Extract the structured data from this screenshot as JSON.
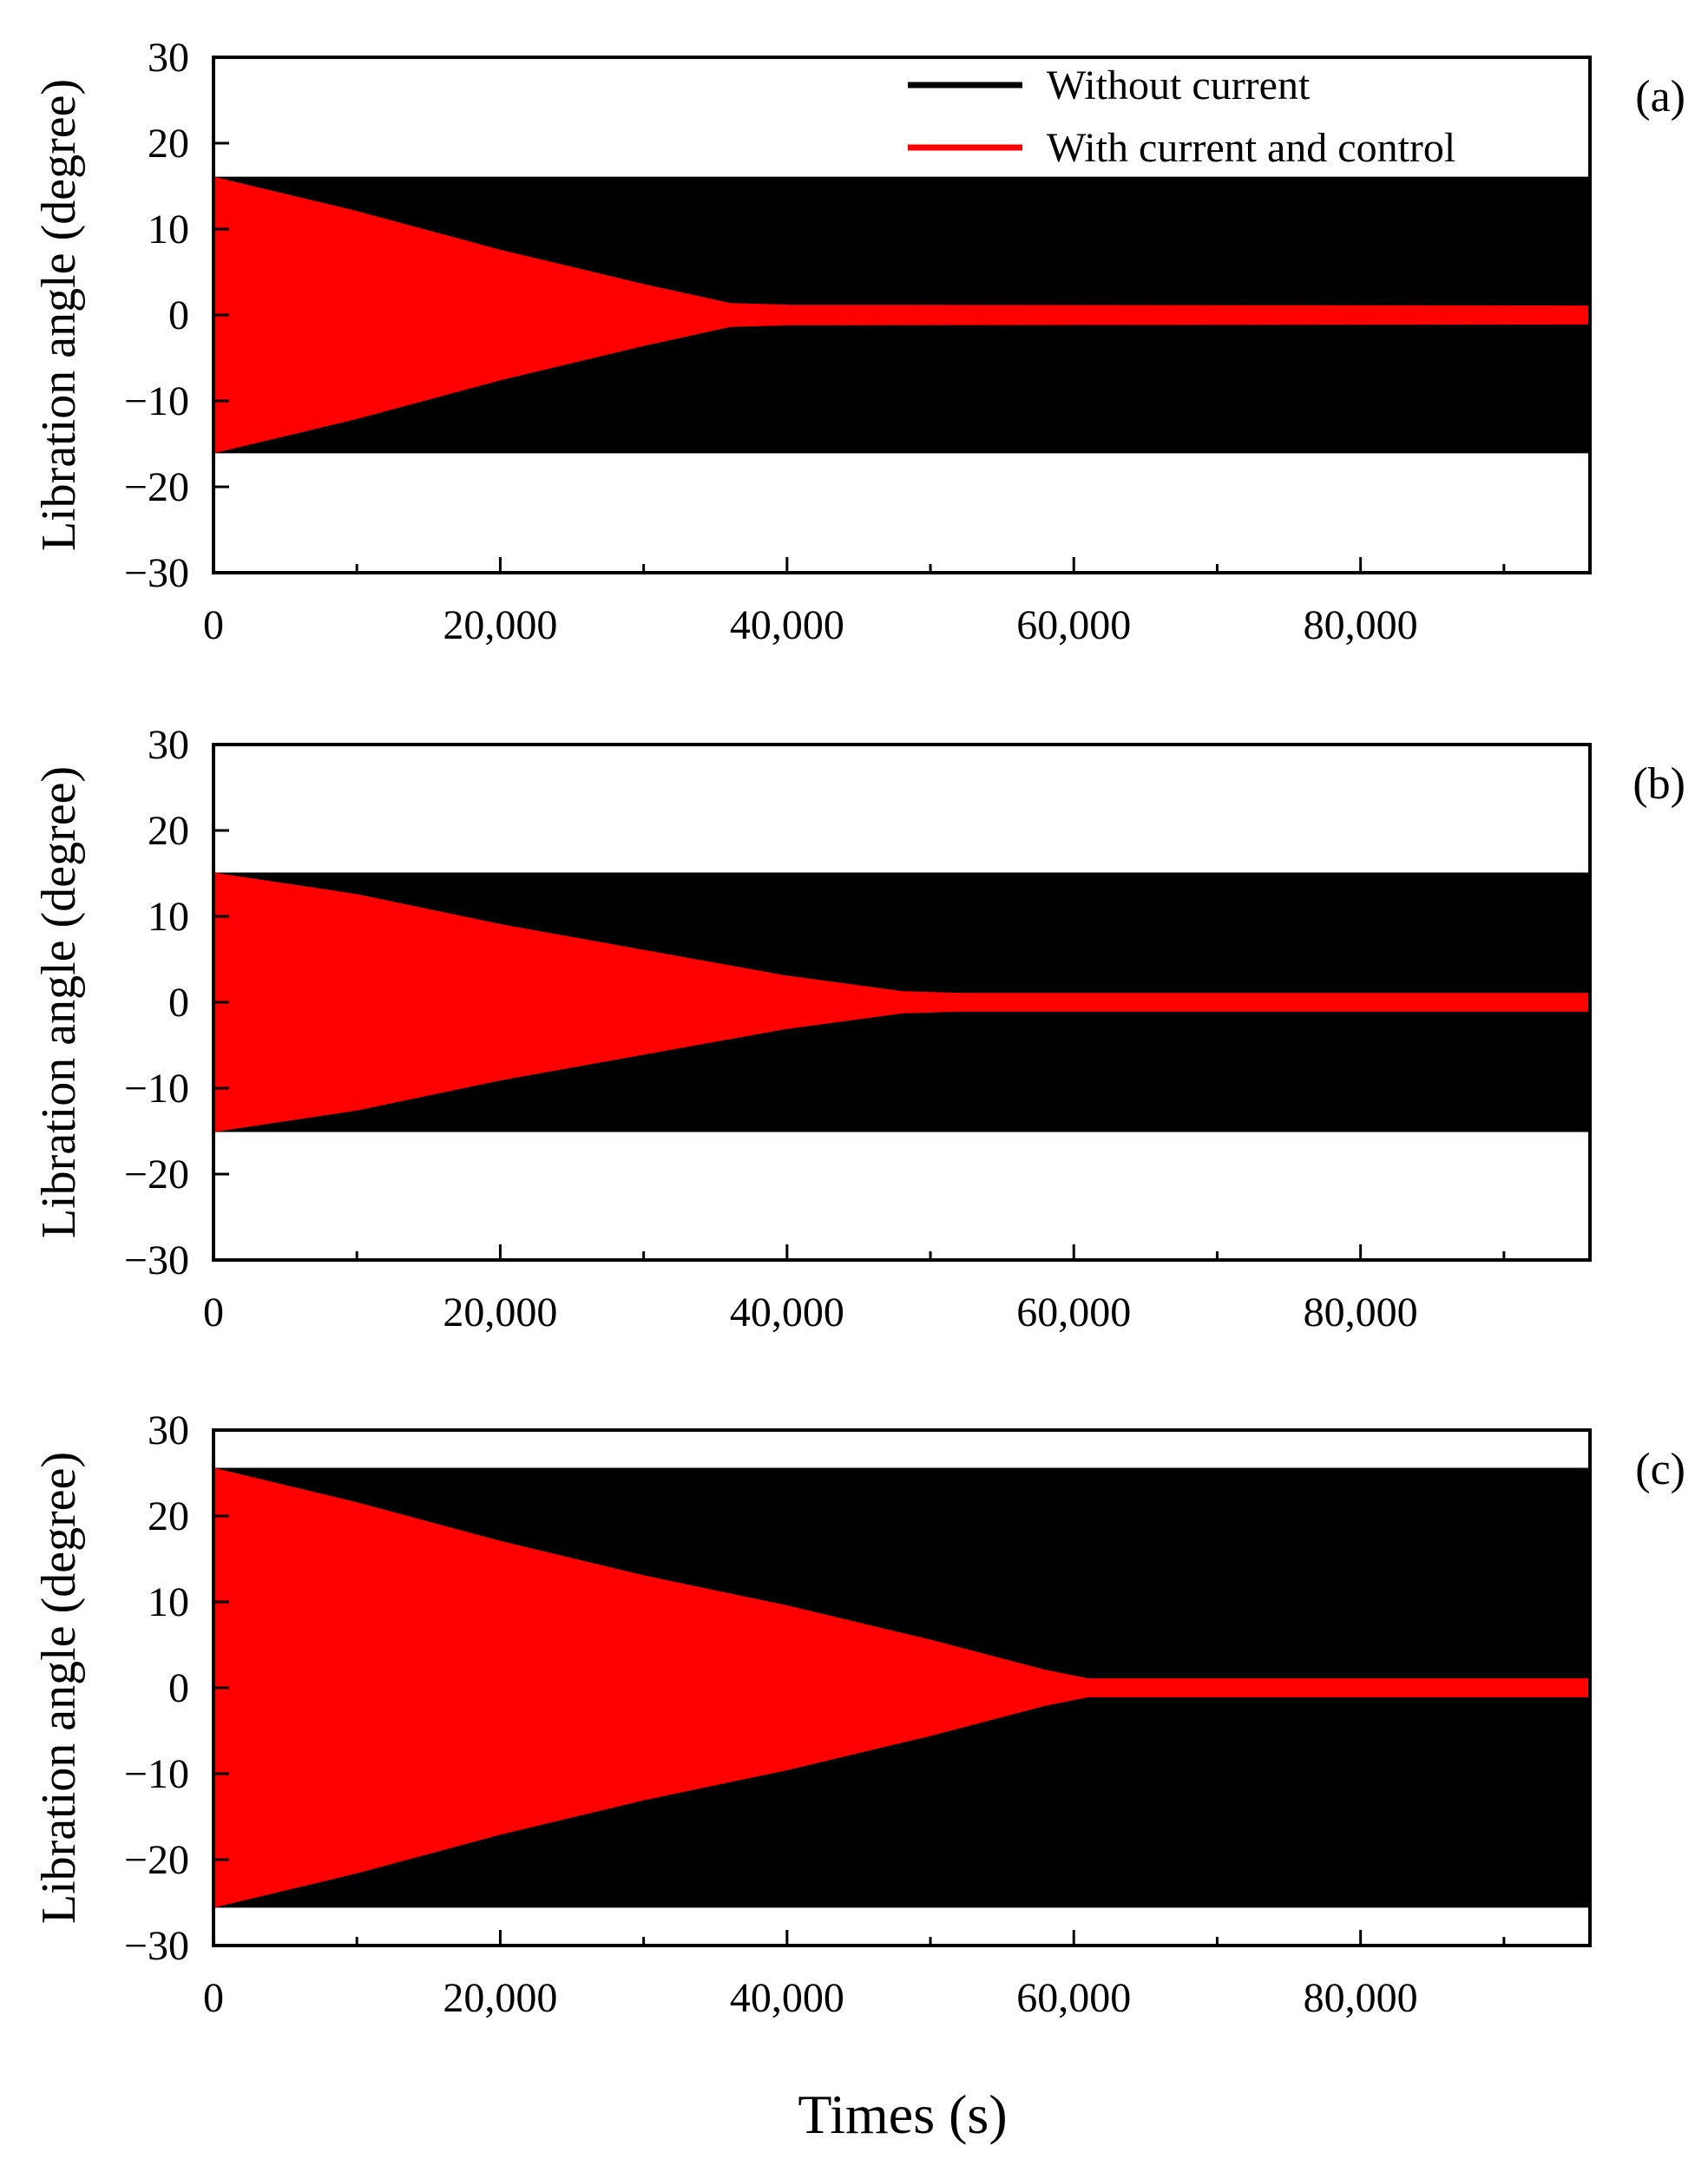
{
  "figure": {
    "xlabel": "Times (s)",
    "legend": {
      "position": "top-right of panel (a)",
      "entries": [
        {
          "label": "Without current",
          "color": "#000000"
        },
        {
          "label": "With current and control",
          "color": "#ff0000"
        }
      ]
    }
  },
  "colors": {
    "without_current": "#000000",
    "with_current_and_control": "#ff0000"
  },
  "chart_data": [
    {
      "type": "area",
      "panel_label": "(a)",
      "ylabel": "Libration angle (degree)",
      "xlim": [
        0,
        96000
      ],
      "ylim": [
        -30,
        30
      ],
      "x_ticks": [
        0,
        20000,
        40000,
        60000,
        80000
      ],
      "x_tick_labels": [
        "0",
        "20,000",
        "40,000",
        "60,000",
        "80,000"
      ],
      "y_ticks": [
        30,
        20,
        10,
        0,
        -10,
        -20,
        -30
      ],
      "y_tick_labels": [
        "30",
        "20",
        "10",
        "0",
        "−10",
        "−20",
        "−30"
      ],
      "grid": false,
      "series": [
        {
          "name": "Without current",
          "color": "#000000",
          "envelope": {
            "x": [
              0,
              96000
            ],
            "upper": [
              16,
              16
            ],
            "lower": [
              -16,
              -16
            ]
          }
        },
        {
          "name": "With current and control",
          "color": "#ff0000",
          "envelope": {
            "x": [
              0,
              10000,
              20000,
              30000,
              36000,
              40000,
              96000
            ],
            "upper": [
              16,
              12,
              7.5,
              3.5,
              1.3,
              1.1,
              1.0
            ],
            "lower": [
              -16,
              -12,
              -7.5,
              -3.5,
              -1.3,
              -1.1,
              -1.0
            ]
          }
        }
      ]
    },
    {
      "type": "area",
      "panel_label": "(b)",
      "ylabel": "Libration angle (degree)",
      "xlim": [
        0,
        96000
      ],
      "ylim": [
        -30,
        30
      ],
      "x_ticks": [
        0,
        20000,
        40000,
        60000,
        80000
      ],
      "x_tick_labels": [
        "0",
        "20,000",
        "40,000",
        "60,000",
        "80,000"
      ],
      "y_ticks": [
        30,
        20,
        10,
        0,
        -10,
        -20,
        -30
      ],
      "y_tick_labels": [
        "30",
        "20",
        "10",
        "0",
        "−10",
        "−20",
        "−30"
      ],
      "grid": false,
      "series": [
        {
          "name": "Without current",
          "color": "#000000",
          "envelope": {
            "x": [
              0,
              96000
            ],
            "upper": [
              15,
              15
            ],
            "lower": [
              -15,
              -15
            ]
          }
        },
        {
          "name": "With current and control",
          "color": "#ff0000",
          "envelope": {
            "x": [
              0,
              10000,
              20000,
              30000,
              40000,
              48000,
              52000,
              96000
            ],
            "upper": [
              15,
              12.5,
              9,
              6,
              3,
              1.2,
              1.0,
              1.0
            ],
            "lower": [
              -15,
              -12.5,
              -9,
              -6,
              -3,
              -1.2,
              -1.0,
              -1.0
            ]
          }
        }
      ]
    },
    {
      "type": "area",
      "panel_label": "(c)",
      "ylabel": "Libration angle (degree)",
      "xlim": [
        0,
        96000
      ],
      "ylim": [
        -30,
        30
      ],
      "x_ticks": [
        0,
        20000,
        40000,
        60000,
        80000
      ],
      "x_tick_labels": [
        "0",
        "20,000",
        "40,000",
        "60,000",
        "80,000"
      ],
      "y_ticks": [
        30,
        20,
        10,
        0,
        -10,
        -20,
        -30
      ],
      "y_tick_labels": [
        "30",
        "20",
        "10",
        "0",
        "−10",
        "−20",
        "−30"
      ],
      "grid": false,
      "series": [
        {
          "name": "Without current",
          "color": "#000000",
          "envelope": {
            "x": [
              0,
              96000
            ],
            "upper": [
              25.5,
              25.5
            ],
            "lower": [
              -25.5,
              -25.5
            ]
          }
        },
        {
          "name": "With current and control",
          "color": "#ff0000",
          "envelope": {
            "x": [
              0,
              10000,
              20000,
              30000,
              40000,
              50000,
              58000,
              61000,
              96000
            ],
            "upper": [
              25.5,
              21.5,
              17,
              13,
              9.5,
              5.5,
              2,
              1.0,
              1.0
            ],
            "lower": [
              -25.5,
              -21.5,
              -17,
              -13,
              -9.5,
              -5.5,
              -2,
              -1.0,
              -1.0
            ]
          }
        }
      ]
    }
  ]
}
